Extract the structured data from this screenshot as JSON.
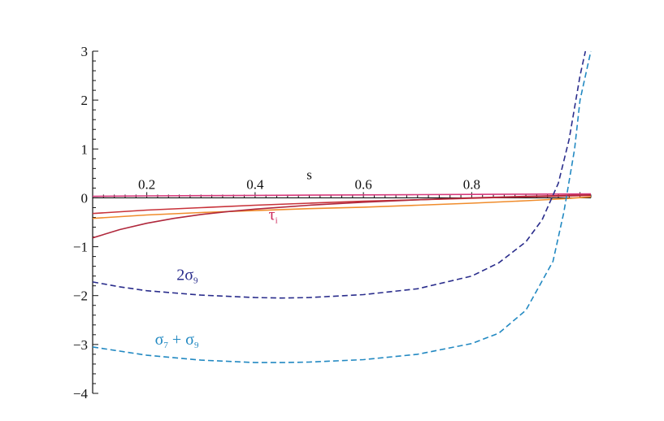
{
  "chart_data": {
    "type": "line",
    "xlabel": "s",
    "ylabel": "",
    "xlim": [
      0.1,
      1.02
    ],
    "ylim": [
      -4,
      3
    ],
    "grid": false,
    "x_ticks": [
      "0.2",
      "0.4",
      "0.6",
      "0.8"
    ],
    "x_tick_values": [
      0.2,
      0.4,
      0.6,
      0.8
    ],
    "y_ticks": [
      "3",
      "2",
      "1",
      "0",
      "−1",
      "−2",
      "−3",
      "−4"
    ],
    "y_tick_values": [
      3,
      2,
      1,
      0,
      -1,
      -2,
      -3,
      -4
    ],
    "series": [
      {
        "style": "solid",
        "color": "#d63a7c",
        "x": [
          0.1,
          0.2,
          0.3,
          0.4,
          0.5,
          0.6,
          0.7,
          0.8,
          0.9,
          1.02
        ],
        "y": [
          0.03,
          0.04,
          0.045,
          0.05,
          0.055,
          0.06,
          0.065,
          0.07,
          0.075,
          0.08
        ]
      },
      {
        "style": "solid",
        "color": "#c8323a",
        "x": [
          0.1,
          0.2,
          0.3,
          0.4,
          0.5,
          0.6,
          0.7,
          0.8,
          0.9,
          1.02
        ],
        "y": [
          -0.32,
          -0.25,
          -0.2,
          -0.15,
          -0.11,
          -0.07,
          -0.04,
          -0.01,
          0.02,
          0.05
        ]
      },
      {
        "style": "solid",
        "color": "#f08c2c",
        "x": [
          0.1,
          0.2,
          0.3,
          0.4,
          0.5,
          0.6,
          0.7,
          0.8,
          0.9,
          0.97,
          1.02
        ],
        "y": [
          -0.42,
          -0.35,
          -0.3,
          -0.26,
          -0.22,
          -0.19,
          -0.15,
          -0.11,
          -0.06,
          -0.02,
          0.02
        ]
      },
      {
        "style": "solid",
        "color": "#b0283c",
        "x": [
          0.1,
          0.15,
          0.2,
          0.25,
          0.3,
          0.35,
          0.4,
          0.5,
          0.6,
          0.7,
          0.8,
          0.9,
          1.02
        ],
        "y": [
          -0.82,
          -0.65,
          -0.52,
          -0.42,
          -0.34,
          -0.28,
          -0.23,
          -0.15,
          -0.09,
          -0.04,
          0.0,
          0.03,
          0.06
        ]
      },
      {
        "style": "dashed",
        "color": "#2a2d8c",
        "x": [
          0.1,
          0.15,
          0.2,
          0.3,
          0.4,
          0.45,
          0.5,
          0.6,
          0.7,
          0.8,
          0.85,
          0.9,
          0.93,
          0.96,
          0.98,
          1.0,
          1.01
        ],
        "y": [
          -1.72,
          -1.82,
          -1.9,
          -1.99,
          -2.04,
          -2.05,
          -2.04,
          -1.98,
          -1.86,
          -1.6,
          -1.33,
          -0.9,
          -0.45,
          0.3,
          1.2,
          2.5,
          3.0
        ]
      },
      {
        "style": "dashed",
        "color": "#2289c2",
        "x": [
          0.1,
          0.2,
          0.3,
          0.4,
          0.45,
          0.5,
          0.6,
          0.7,
          0.8,
          0.85,
          0.9,
          0.95,
          0.97,
          0.99,
          1.0,
          1.02
        ],
        "y": [
          -3.05,
          -3.22,
          -3.32,
          -3.37,
          -3.37,
          -3.36,
          -3.31,
          -3.2,
          -2.98,
          -2.77,
          -2.3,
          -1.3,
          -0.3,
          1.0,
          2.0,
          3.0
        ]
      }
    ],
    "annotations": [
      {
        "text": "τ",
        "sub": "i",
        "x": 0.425,
        "y": -0.45,
        "color": "#cc2a5a"
      },
      {
        "text": "2σ",
        "sub": "9",
        "x": 0.255,
        "y": -1.68,
        "color": "#2a2d8c"
      },
      {
        "text": "σ",
        "sub": "7",
        "tail": " + σ",
        "sub2": "9",
        "x": 0.215,
        "y": -3.0,
        "color": "#2289c2"
      }
    ]
  }
}
